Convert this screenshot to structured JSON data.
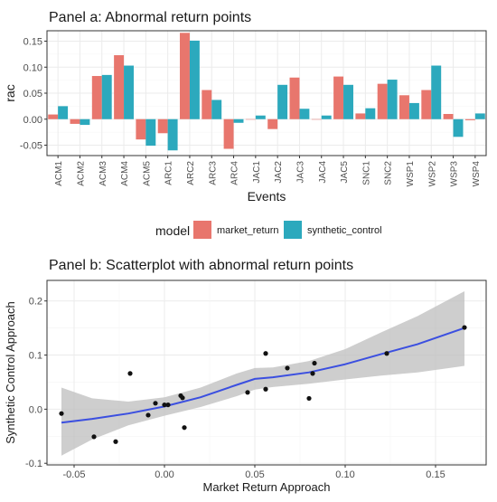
{
  "colors": {
    "market_return": "#e8766d",
    "synthetic_control": "#2ca9bd",
    "grid": "#ebebeb",
    "panel_border": "#333333",
    "text": "#1a1a1a",
    "smooth_line": "#3b4fe0",
    "ribbon": "#bdbdbd",
    "point": "#111111"
  },
  "chart_data": [
    {
      "type": "bar",
      "title": "Panel a: Abnormal return points",
      "xlabel": "Events",
      "ylabel": "rac",
      "ylim": [
        -0.07,
        0.17
      ],
      "yticks": [
        -0.05,
        0.0,
        0.05,
        0.1,
        0.15
      ],
      "ytick_labels": [
        "-0.05",
        "0.00",
        "0.05",
        "0.10",
        "0.15"
      ],
      "grid": true,
      "legend": {
        "title": "model",
        "position": "bottom"
      },
      "categories": [
        "ACM1",
        "ACM2",
        "ACM3",
        "ACM4",
        "ACM5",
        "ARC1",
        "ARC2",
        "ARC3",
        "ARC4",
        "JAC1",
        "JAC2",
        "JAC3",
        "JAC4",
        "JAC5",
        "SNC1",
        "SNC2",
        "WSP1",
        "WSP2",
        "WSP3",
        "WSP4"
      ],
      "series": [
        {
          "name": "market_return",
          "values": [
            0.009,
            -0.009,
            0.083,
            0.123,
            -0.039,
            -0.027,
            0.166,
            0.056,
            -0.057,
            0.0,
            -0.019,
            0.08,
            0.0,
            0.082,
            0.011,
            0.068,
            0.046,
            0.056,
            0.01,
            -0.002
          ]
        },
        {
          "name": "synthetic_control",
          "values": [
            0.025,
            -0.011,
            0.085,
            0.103,
            -0.051,
            -0.06,
            0.151,
            0.037,
            -0.007,
            0.007,
            0.066,
            0.02,
            0.007,
            0.066,
            0.021,
            0.076,
            0.031,
            0.103,
            -0.034,
            0.011
          ]
        }
      ]
    },
    {
      "type": "scatter",
      "title": "Panel b: Scatterplot with abnormal return points",
      "xlabel": "Market Return Approach",
      "ylabel": "Synthetic Control Approach",
      "xlim": [
        -0.065,
        0.178
      ],
      "ylim": [
        -0.103,
        0.238
      ],
      "xticks": [
        -0.05,
        0.0,
        0.05,
        0.1,
        0.15
      ],
      "xtick_labels": [
        "-0.05",
        "0.00",
        "0.05",
        "0.10",
        "0.15"
      ],
      "yticks": [
        -0.1,
        0.0,
        0.1,
        0.2
      ],
      "ytick_labels": [
        "-0.1",
        "0.0",
        "0.1",
        "0.2"
      ],
      "grid": true,
      "points": [
        [
          -0.057,
          -0.008
        ],
        [
          -0.039,
          -0.051
        ],
        [
          -0.027,
          -0.06
        ],
        [
          -0.019,
          0.066
        ],
        [
          -0.009,
          -0.011
        ],
        [
          -0.005,
          0.011
        ],
        [
          0.0,
          0.008
        ],
        [
          0.002,
          0.008
        ],
        [
          0.009,
          0.025
        ],
        [
          0.01,
          0.021
        ],
        [
          0.011,
          -0.034
        ],
        [
          0.046,
          0.031
        ],
        [
          0.056,
          0.103
        ],
        [
          0.056,
          0.037
        ],
        [
          0.068,
          0.076
        ],
        [
          0.08,
          0.02
        ],
        [
          0.082,
          0.066
        ],
        [
          0.083,
          0.085
        ],
        [
          0.123,
          0.103
        ],
        [
          0.166,
          0.151
        ]
      ],
      "smooth": {
        "x": [
          -0.057,
          -0.04,
          -0.02,
          0.0,
          0.02,
          0.04,
          0.05,
          0.06,
          0.08,
          0.1,
          0.12,
          0.14,
          0.166
        ],
        "y": [
          -0.025,
          -0.018,
          -0.008,
          0.005,
          0.022,
          0.045,
          0.056,
          0.059,
          0.068,
          0.083,
          0.102,
          0.12,
          0.15
        ],
        "lower": [
          -0.086,
          -0.056,
          -0.03,
          -0.012,
          0.004,
          0.024,
          0.036,
          0.041,
          0.047,
          0.055,
          0.062,
          0.068,
          0.08
        ],
        "upper": [
          0.04,
          0.02,
          0.014,
          0.022,
          0.04,
          0.066,
          0.076,
          0.077,
          0.089,
          0.111,
          0.142,
          0.172,
          0.218
        ]
      }
    }
  ]
}
